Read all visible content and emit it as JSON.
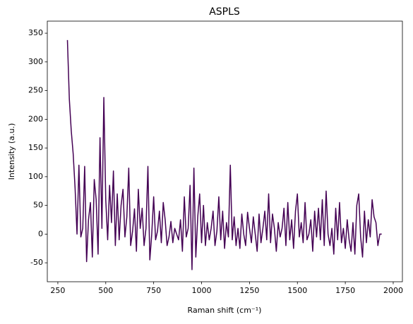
{
  "chart_data": {
    "type": "line",
    "title": "ASPLS",
    "x_label": "Raman shift (cm⁻¹)",
    "y_label": "Intensity (a.u.)",
    "x": [
      300,
      310,
      320,
      330,
      340,
      350,
      360,
      370,
      380,
      390,
      400,
      410,
      420,
      430,
      440,
      450,
      460,
      470,
      480,
      490,
      500,
      510,
      520,
      530,
      540,
      550,
      560,
      570,
      580,
      590,
      600,
      610,
      620,
      630,
      640,
      650,
      660,
      670,
      680,
      690,
      700,
      710,
      720,
      730,
      740,
      750,
      760,
      770,
      780,
      790,
      800,
      810,
      820,
      830,
      840,
      850,
      860,
      870,
      880,
      890,
      900,
      910,
      920,
      930,
      940,
      950,
      960,
      970,
      980,
      990,
      1000,
      1010,
      1020,
      1030,
      1040,
      1050,
      1060,
      1070,
      1080,
      1090,
      1100,
      1110,
      1120,
      1130,
      1140,
      1150,
      1160,
      1170,
      1180,
      1190,
      1200,
      1210,
      1220,
      1230,
      1240,
      1250,
      1260,
      1270,
      1280,
      1290,
      1300,
      1310,
      1320,
      1330,
      1340,
      1350,
      1360,
      1370,
      1380,
      1390,
      1400,
      1410,
      1420,
      1430,
      1440,
      1450,
      1460,
      1470,
      1480,
      1490,
      1500,
      1510,
      1520,
      1530,
      1540,
      1550,
      1560,
      1570,
      1580,
      1590,
      1600,
      1610,
      1620,
      1630,
      1640,
      1650,
      1660,
      1670,
      1680,
      1690,
      1700,
      1710,
      1720,
      1730,
      1740,
      1750,
      1760,
      1770,
      1780,
      1790,
      1800,
      1810,
      1820,
      1830,
      1840,
      1850,
      1860,
      1870,
      1880,
      1890,
      1900,
      1910,
      1920,
      1930,
      1940
    ],
    "series": [
      {
        "name": "ASPLS",
        "color": "#440154",
        "values": [
          338,
          235,
          180,
          140,
          80,
          0,
          120,
          -5,
          10,
          118,
          -48,
          25,
          55,
          -40,
          95,
          60,
          -35,
          168,
          10,
          238,
          60,
          -10,
          85,
          20,
          110,
          -20,
          70,
          -10,
          50,
          78,
          -5,
          30,
          115,
          -20,
          5,
          44,
          -30,
          78,
          10,
          45,
          -20,
          10,
          118,
          -45,
          0,
          65,
          -10,
          5,
          40,
          -15,
          55,
          25,
          -20,
          -5,
          22,
          -15,
          10,
          0,
          -10,
          25,
          -30,
          65,
          -5,
          10,
          85,
          -62,
          115,
          -40,
          30,
          70,
          -15,
          50,
          -20,
          20,
          -10,
          10,
          40,
          -20,
          5,
          65,
          -10,
          40,
          -25,
          20,
          -5,
          120,
          -10,
          30,
          -20,
          10,
          -25,
          35,
          0,
          -20,
          38,
          10,
          -15,
          30,
          0,
          -30,
          35,
          -15,
          10,
          40,
          -10,
          70,
          -15,
          35,
          10,
          -30,
          20,
          -5,
          10,
          45,
          -20,
          55,
          -10,
          25,
          -25,
          40,
          70,
          -5,
          20,
          -15,
          55,
          -10,
          0,
          25,
          -30,
          40,
          -5,
          45,
          -10,
          60,
          -20,
          75,
          0,
          -20,
          10,
          -35,
          45,
          -10,
          55,
          -15,
          10,
          -25,
          25,
          -10,
          -30,
          20,
          -35,
          50,
          70,
          -5,
          -40,
          40,
          -15,
          25,
          -5,
          60,
          30,
          20,
          -20,
          0,
          0
        ]
      }
    ],
    "xlim": [
      195,
      2048
    ],
    "ylim": [
      -83,
      371
    ],
    "xticks": [
      250,
      500,
      750,
      1000,
      1250,
      1500,
      1750,
      2000
    ],
    "yticks": [
      -50,
      0,
      50,
      100,
      150,
      200,
      250,
      300,
      350
    ]
  }
}
